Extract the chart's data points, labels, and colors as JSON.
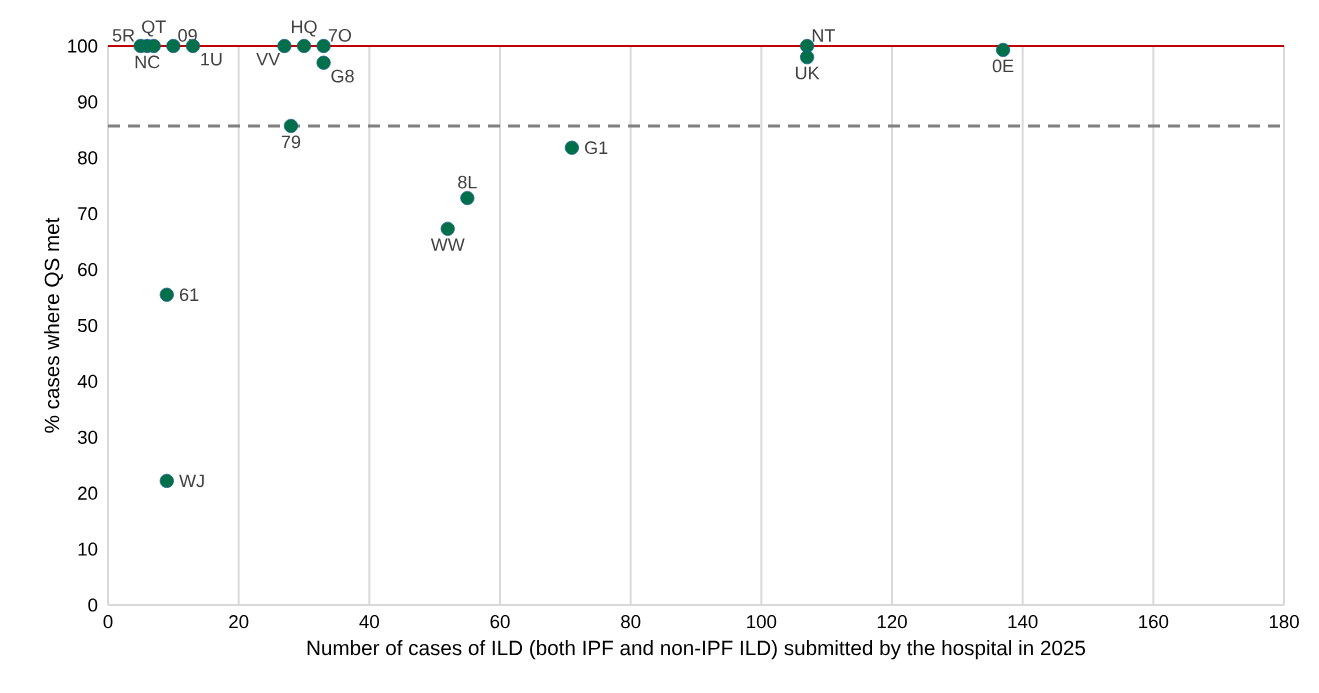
{
  "chart_data": {
    "type": "scatter",
    "xlabel": "Number of cases of ILD (both IPF and non-IPF ILD) submitted by the hospital in 2025",
    "ylabel": "% cases where QS met",
    "x": [
      5,
      6,
      7,
      10,
      13,
      27,
      30,
      33,
      33,
      28,
      107,
      107,
      137,
      71,
      55,
      52,
      9,
      9
    ],
    "series": [
      {
        "color": "#00704a",
        "values": [
          100,
          100,
          100,
          100,
          100,
          100,
          100,
          100,
          97,
          85.7,
          100,
          98,
          99.3,
          81.8,
          72.8,
          67.3,
          55.5,
          22.2
        ]
      }
    ],
    "marker": "circle",
    "xlim": [
      0,
      180
    ],
    "ylim": [
      0,
      100
    ],
    "xticks": [
      0,
      20,
      40,
      60,
      80,
      100,
      120,
      140,
      160,
      180
    ],
    "yticks": [
      0,
      10,
      20,
      30,
      40,
      50,
      60,
      70,
      80,
      90,
      100
    ],
    "grid": "x",
    "ref_lines": [
      {
        "axis": "y",
        "value": 100,
        "color": "#c00000",
        "line_style": "solid"
      },
      {
        "axis": "y",
        "value": 85.7,
        "color": "#808080",
        "line_style": "dashed"
      }
    ],
    "annotations": [
      {
        "text": "5R",
        "x": 5,
        "y": 100
      },
      {
        "text": "NC",
        "x": 6,
        "y": 100
      },
      {
        "text": "QT",
        "x": 7,
        "y": 100
      },
      {
        "text": "09",
        "x": 10,
        "y": 100
      },
      {
        "text": "1U",
        "x": 13,
        "y": 100
      },
      {
        "text": "VV",
        "x": 27,
        "y": 100
      },
      {
        "text": "HQ",
        "x": 30,
        "y": 100
      },
      {
        "text": "7O",
        "x": 33,
        "y": 100
      },
      {
        "text": "G8",
        "x": 33,
        "y": 97
      },
      {
        "text": "79",
        "x": 28,
        "y": 85.7
      },
      {
        "text": "NT",
        "x": 107,
        "y": 100
      },
      {
        "text": "UK",
        "x": 107,
        "y": 98
      },
      {
        "text": "0E",
        "x": 137,
        "y": 99.3
      },
      {
        "text": "G1",
        "x": 71,
        "y": 81.8
      },
      {
        "text": "8L",
        "x": 55,
        "y": 72.8
      },
      {
        "text": "WW",
        "x": 52,
        "y": 67.3
      },
      {
        "text": "61",
        "x": 9,
        "y": 55.5
      },
      {
        "text": "WJ",
        "x": 9,
        "y": 22.2
      }
    ]
  }
}
